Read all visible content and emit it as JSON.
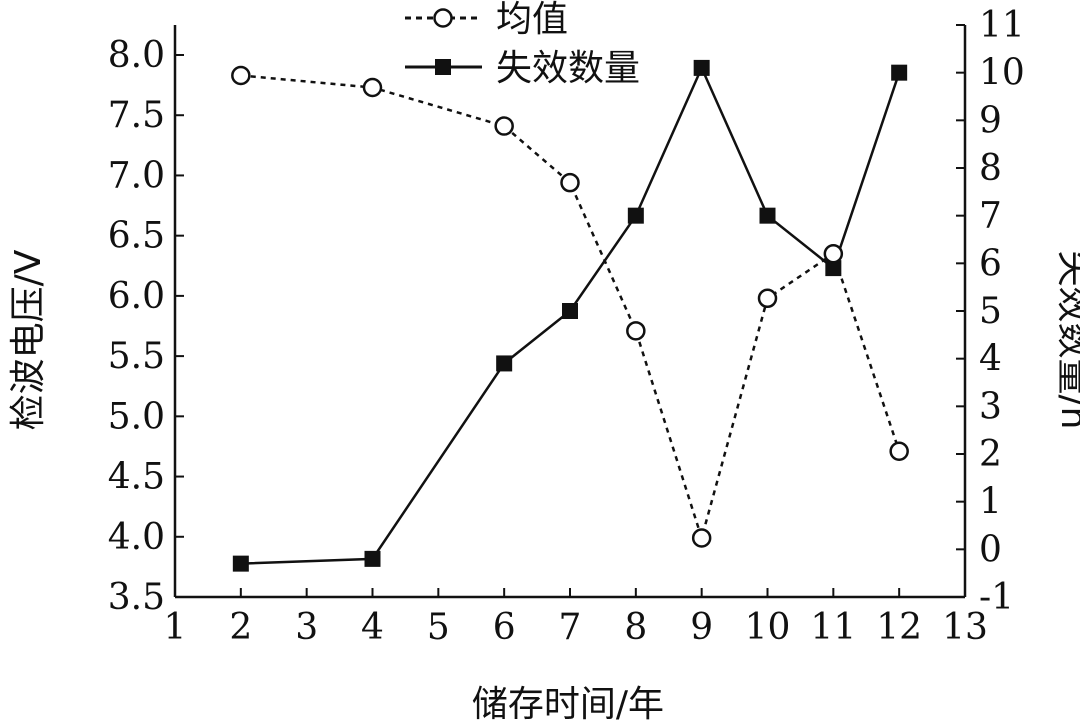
{
  "chart_data": {
    "type": "line",
    "title": "",
    "xlabel": "储存时间/年",
    "ylabel": "检波电压/V",
    "y2label": "失效数量/n",
    "xlim": [
      1,
      13
    ],
    "ylim": [
      3.5,
      8.0
    ],
    "y2lim": [
      -1,
      11
    ],
    "x_ticks": [
      1,
      2,
      3,
      4,
      5,
      6,
      7,
      8,
      9,
      10,
      11,
      12,
      13
    ],
    "x_tick_labels": [
      "1",
      "2",
      "3",
      "4",
      "5",
      "6",
      "7",
      "8",
      "9",
      "10",
      "11",
      "12",
      "13"
    ],
    "y_ticks": [
      3.5,
      4.0,
      4.5,
      5.0,
      5.5,
      6.0,
      6.5,
      7.0,
      7.5,
      8.0
    ],
    "y_tick_labels": [
      "3.5",
      "4.0",
      "4.5",
      "5.0",
      "5.5",
      "6.0",
      "6.5",
      "7.0",
      "7.5",
      "8.0"
    ],
    "y2_ticks": [
      -1,
      0,
      1,
      2,
      3,
      4,
      5,
      6,
      7,
      8,
      9,
      10,
      11
    ],
    "y2_tick_labels": [
      "-1",
      "0",
      "1",
      "2",
      "3",
      "4",
      "5",
      "6",
      "7",
      "8",
      "9",
      "10",
      "11"
    ],
    "x_positions": [
      2,
      4,
      6,
      7,
      8,
      9,
      10,
      11,
      12
    ],
    "series": [
      {
        "name": "均值",
        "axis": "left",
        "style": "dashed",
        "marker": "open-circle",
        "values": [
          7.83,
          7.73,
          7.41,
          6.94,
          5.71,
          3.99,
          5.98,
          6.35,
          4.71
        ]
      },
      {
        "name": "失效数量",
        "axis": "right",
        "style": "solid",
        "marker": "filled-square",
        "values": [
          -0.3,
          -0.2,
          3.9,
          5.0,
          7.0,
          10.1,
          7.0,
          5.9,
          10.0
        ]
      }
    ],
    "legend_position": "top-center",
    "grid": false
  }
}
